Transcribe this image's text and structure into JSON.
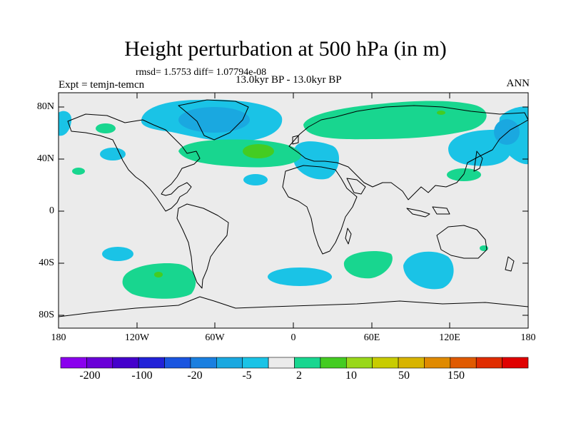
{
  "header": {
    "title": "Height perturbation at 500 hPa (in m)",
    "stats": "rmsd= 1.5753 diff= 1.07794e-08",
    "experiment": "Expt = temjn-temcn",
    "period": "13.0kyr BP - 13.0kyr BP",
    "season": "ANN"
  },
  "axes": {
    "lat_labels": [
      "80N",
      "40N",
      "0",
      "40S",
      "80S"
    ],
    "lon_labels": [
      "180",
      "120W",
      "60W",
      "0",
      "60E",
      "120E",
      "180"
    ]
  },
  "colorbar": {
    "colors": [
      "#8a00ee",
      "#6a00d8",
      "#4400cc",
      "#2222d8",
      "#1a55e0",
      "#1a7fe0",
      "#1aa8e0",
      "#1ac3e6",
      "#ebebeb",
      "#18d68f",
      "#44cc22",
      "#99d81a",
      "#c8cc00",
      "#d8b400",
      "#e08a00",
      "#e05a00",
      "#e02c00",
      "#e00000"
    ],
    "tick_labels": [
      "-200",
      "-100",
      "-20",
      "-5",
      "2",
      "10",
      "50",
      "150"
    ]
  },
  "colors": {
    "land_background": "#ebebeb",
    "coastline": "#000000"
  }
}
